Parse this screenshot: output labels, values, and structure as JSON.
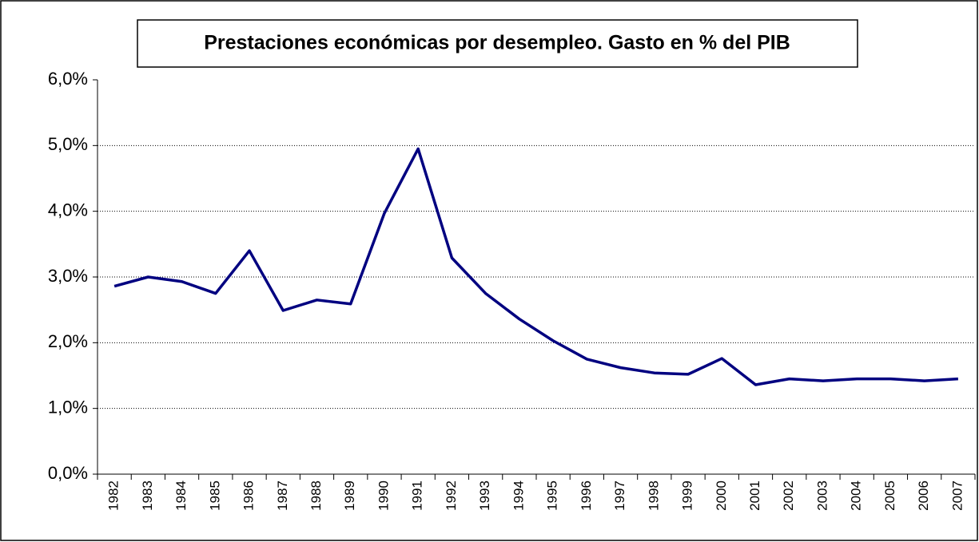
{
  "chart_data": {
    "type": "line",
    "title": "Prestaciones económicas por desempleo. Gasto en % del PIB",
    "categories": [
      "1982",
      "1983",
      "1984",
      "1985",
      "1986",
      "1987",
      "1988",
      "1989",
      "1990",
      "1991",
      "1992",
      "1993",
      "1994",
      "1995",
      "1996",
      "1997",
      "1998",
      "1999",
      "2000",
      "2001",
      "2002",
      "2003",
      "2004",
      "2005",
      "2006",
      "2007"
    ],
    "series": [
      {
        "color": "#000080",
        "values": [
          2.86,
          3.0,
          2.93,
          2.75,
          3.4,
          2.49,
          2.65,
          2.59,
          3.97,
          4.95,
          3.29,
          2.75,
          2.36,
          2.03,
          1.75,
          1.62,
          1.54,
          1.52,
          1.76,
          1.36,
          1.45,
          1.42,
          1.45,
          1.45,
          1.42,
          1.45
        ]
      }
    ],
    "ylim": [
      0,
      6
    ],
    "yticks": [
      {
        "value": 0,
        "label": "0,0%"
      },
      {
        "value": 1,
        "label": "1,0%"
      },
      {
        "value": 2,
        "label": "2,0%"
      },
      {
        "value": 3,
        "label": "3,0%"
      },
      {
        "value": 4,
        "label": "4,0%"
      },
      {
        "value": 5,
        "label": "5,0%"
      },
      {
        "value": 6,
        "label": "6,0%"
      }
    ],
    "grid": true
  }
}
